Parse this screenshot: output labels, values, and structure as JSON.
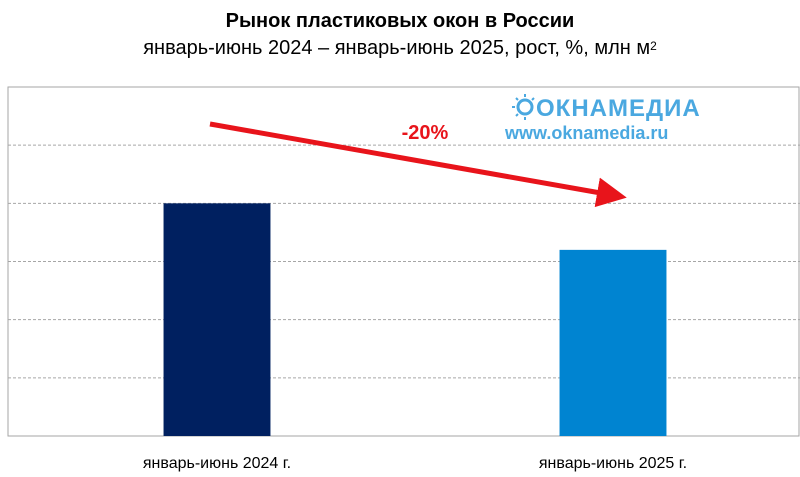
{
  "title": "Рынок пластиковых окон в России",
  "subtitle": "январь-июнь 2024 – январь-июнь 2025, рост, %, млн м",
  "subtitle_sup": "2",
  "watermark": {
    "brand": "ОКНАМЕДИА",
    "url": "www.oknamedia.ru",
    "color": "#4aa8e0"
  },
  "annotation": {
    "text": "-20%",
    "color": "#e8141b"
  },
  "chart_data": {
    "type": "bar",
    "title": "Рынок пластиковых окон в России",
    "subtitle": "январь-июнь 2024 – январь-июнь 2025, рост, %, млн м2",
    "categories": [
      "январь-июнь 2024 г.",
      "январь-июнь 2025 г."
    ],
    "values": [
      100,
      80
    ],
    "colors": [
      "#002060",
      "#0084d1"
    ],
    "ylim": [
      0,
      150
    ],
    "grid": true,
    "y_tick_labels_shown": false,
    "annotations": [
      {
        "text": "-20%",
        "type": "arrow",
        "from": "январь-июнь 2024 г.",
        "to": "январь-июнь 2025 г."
      }
    ]
  }
}
